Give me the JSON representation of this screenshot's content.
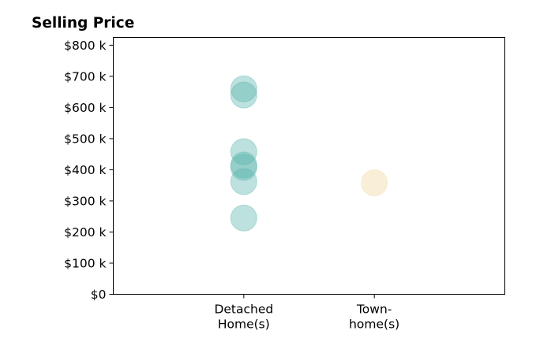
{
  "chart_data": {
    "type": "scatter",
    "title": "Selling Price",
    "xlabel": "",
    "ylabel": "",
    "categories": [
      [
        "Detached",
        "Home(s)"
      ],
      [
        "Town-",
        "home(s)"
      ]
    ],
    "xlim": [
      -1,
      2
    ],
    "ylim": [
      0,
      825000
    ],
    "yticks": [
      0,
      100000,
      200000,
      300000,
      400000,
      500000,
      600000,
      700000,
      800000
    ],
    "ytick_labels": [
      "$0",
      "$100 k",
      "$200 k",
      "$300 k",
      "$400 k",
      "$500 k",
      "$600 k",
      "$700 k",
      "$800 k"
    ],
    "grid": false,
    "series": [
      {
        "category_index": 0,
        "color": "#5ab4ac",
        "values": [
          660000,
          640000,
          458000,
          415000,
          408000,
          362000,
          245000
        ]
      },
      {
        "category_index": 1,
        "color": "#f0d8a0",
        "values": [
          358000
        ]
      }
    ]
  }
}
